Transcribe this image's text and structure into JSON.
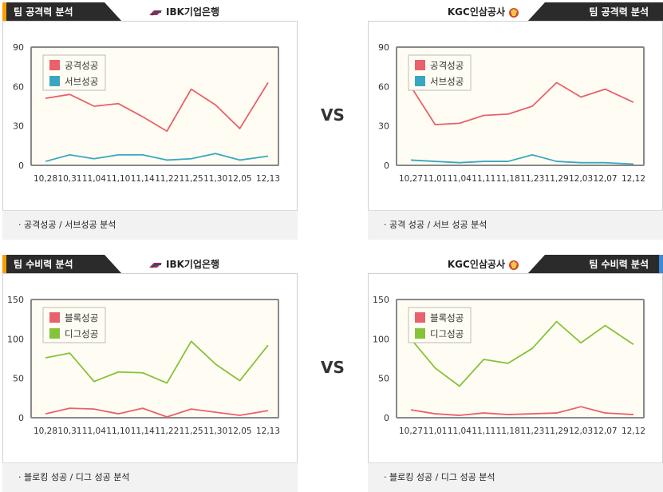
{
  "panels": [
    {
      "tab": "팀 공격력 분석",
      "team": "IBK기업은행",
      "footer": "· 공격성공 / 서브성공 분석",
      "chart_data": {
        "type": "line",
        "categories": [
          "10,28",
          "10,31",
          "11,04",
          "11,10",
          "11,14",
          "11,22",
          "11,25",
          "11,30",
          "12,05",
          "12,13"
        ],
        "yticks": [
          "0",
          "30",
          "60",
          "90"
        ],
        "ylim": [
          0,
          90
        ],
        "series": [
          {
            "name": "공격성공",
            "color": "#e8616b",
            "values": [
              51,
              54,
              45,
              47,
              37,
              26,
              58,
              46,
              28,
              63
            ]
          },
          {
            "name": "서브성공",
            "color": "#3aa7c2",
            "values": [
              3,
              8,
              5,
              8,
              8,
              4,
              5,
              9,
              4,
              7
            ]
          }
        ]
      }
    },
    {
      "tab": "팀 공격력 분석",
      "team": "KGC인삼공사",
      "footer": "· 공격 성공 / 서브 성공 분석",
      "chart_data": {
        "type": "line",
        "categories": [
          "10,27",
          "11,01",
          "11,04",
          "11,11",
          "11,18",
          "11,23",
          "11,29",
          "12,03",
          "12,07",
          "12,12"
        ],
        "yticks": [
          "0",
          "30",
          "60",
          "90"
        ],
        "ylim": [
          0,
          90
        ],
        "series": [
          {
            "name": "공격성공",
            "color": "#e8616b",
            "values": [
              60,
              31,
              32,
              38,
              39,
              45,
              63,
              52,
              58,
              48
            ]
          },
          {
            "name": "서브성공",
            "color": "#3aa7c2",
            "values": [
              4,
              3,
              2,
              3,
              3,
              8,
              3,
              2,
              2,
              1
            ]
          }
        ]
      }
    },
    {
      "tab": "팀 수비력 분석",
      "team": "IBK기업은행",
      "footer": "· 블로킹 성공 / 디그 성공 분석",
      "chart_data": {
        "type": "line",
        "categories": [
          "10,28",
          "10,31",
          "11,04",
          "11,10",
          "11,14",
          "11,22",
          "11,25",
          "11,30",
          "12,05",
          "12,13"
        ],
        "yticks": [
          "0",
          "50",
          "100",
          "150"
        ],
        "ylim": [
          0,
          150
        ],
        "series": [
          {
            "name": "블록성공",
            "color": "#e8616b",
            "values": [
              5,
              12,
              11,
              5,
              12,
              1,
              11,
              7,
              3,
              9
            ]
          },
          {
            "name": "디그성공",
            "color": "#86c23a",
            "values": [
              76,
              82,
              46,
              58,
              57,
              44,
              97,
              68,
              47,
              92
            ]
          }
        ]
      }
    },
    {
      "tab": "팀 수비력 분석",
      "team": "KGC인삼공사",
      "footer": "· 블로킹 성공 / 디그 성공 분석",
      "chart_data": {
        "type": "line",
        "categories": [
          "10,27",
          "11,01",
          "11,04",
          "11,11",
          "11,18",
          "11,23",
          "11,29",
          "12,03",
          "12,07",
          "12,12"
        ],
        "yticks": [
          "0",
          "50",
          "100",
          "150"
        ],
        "ylim": [
          0,
          150
        ],
        "series": [
          {
            "name": "블록성공",
            "color": "#e8616b",
            "values": [
              10,
              5,
              3,
              6,
              4,
              5,
              6,
              14,
              6,
              4
            ]
          },
          {
            "name": "디그성공",
            "color": "#86c23a",
            "values": [
              100,
              63,
              40,
              74,
              69,
              88,
              122,
              95,
              117,
              93
            ]
          }
        ]
      }
    }
  ],
  "vs_label": "VS"
}
